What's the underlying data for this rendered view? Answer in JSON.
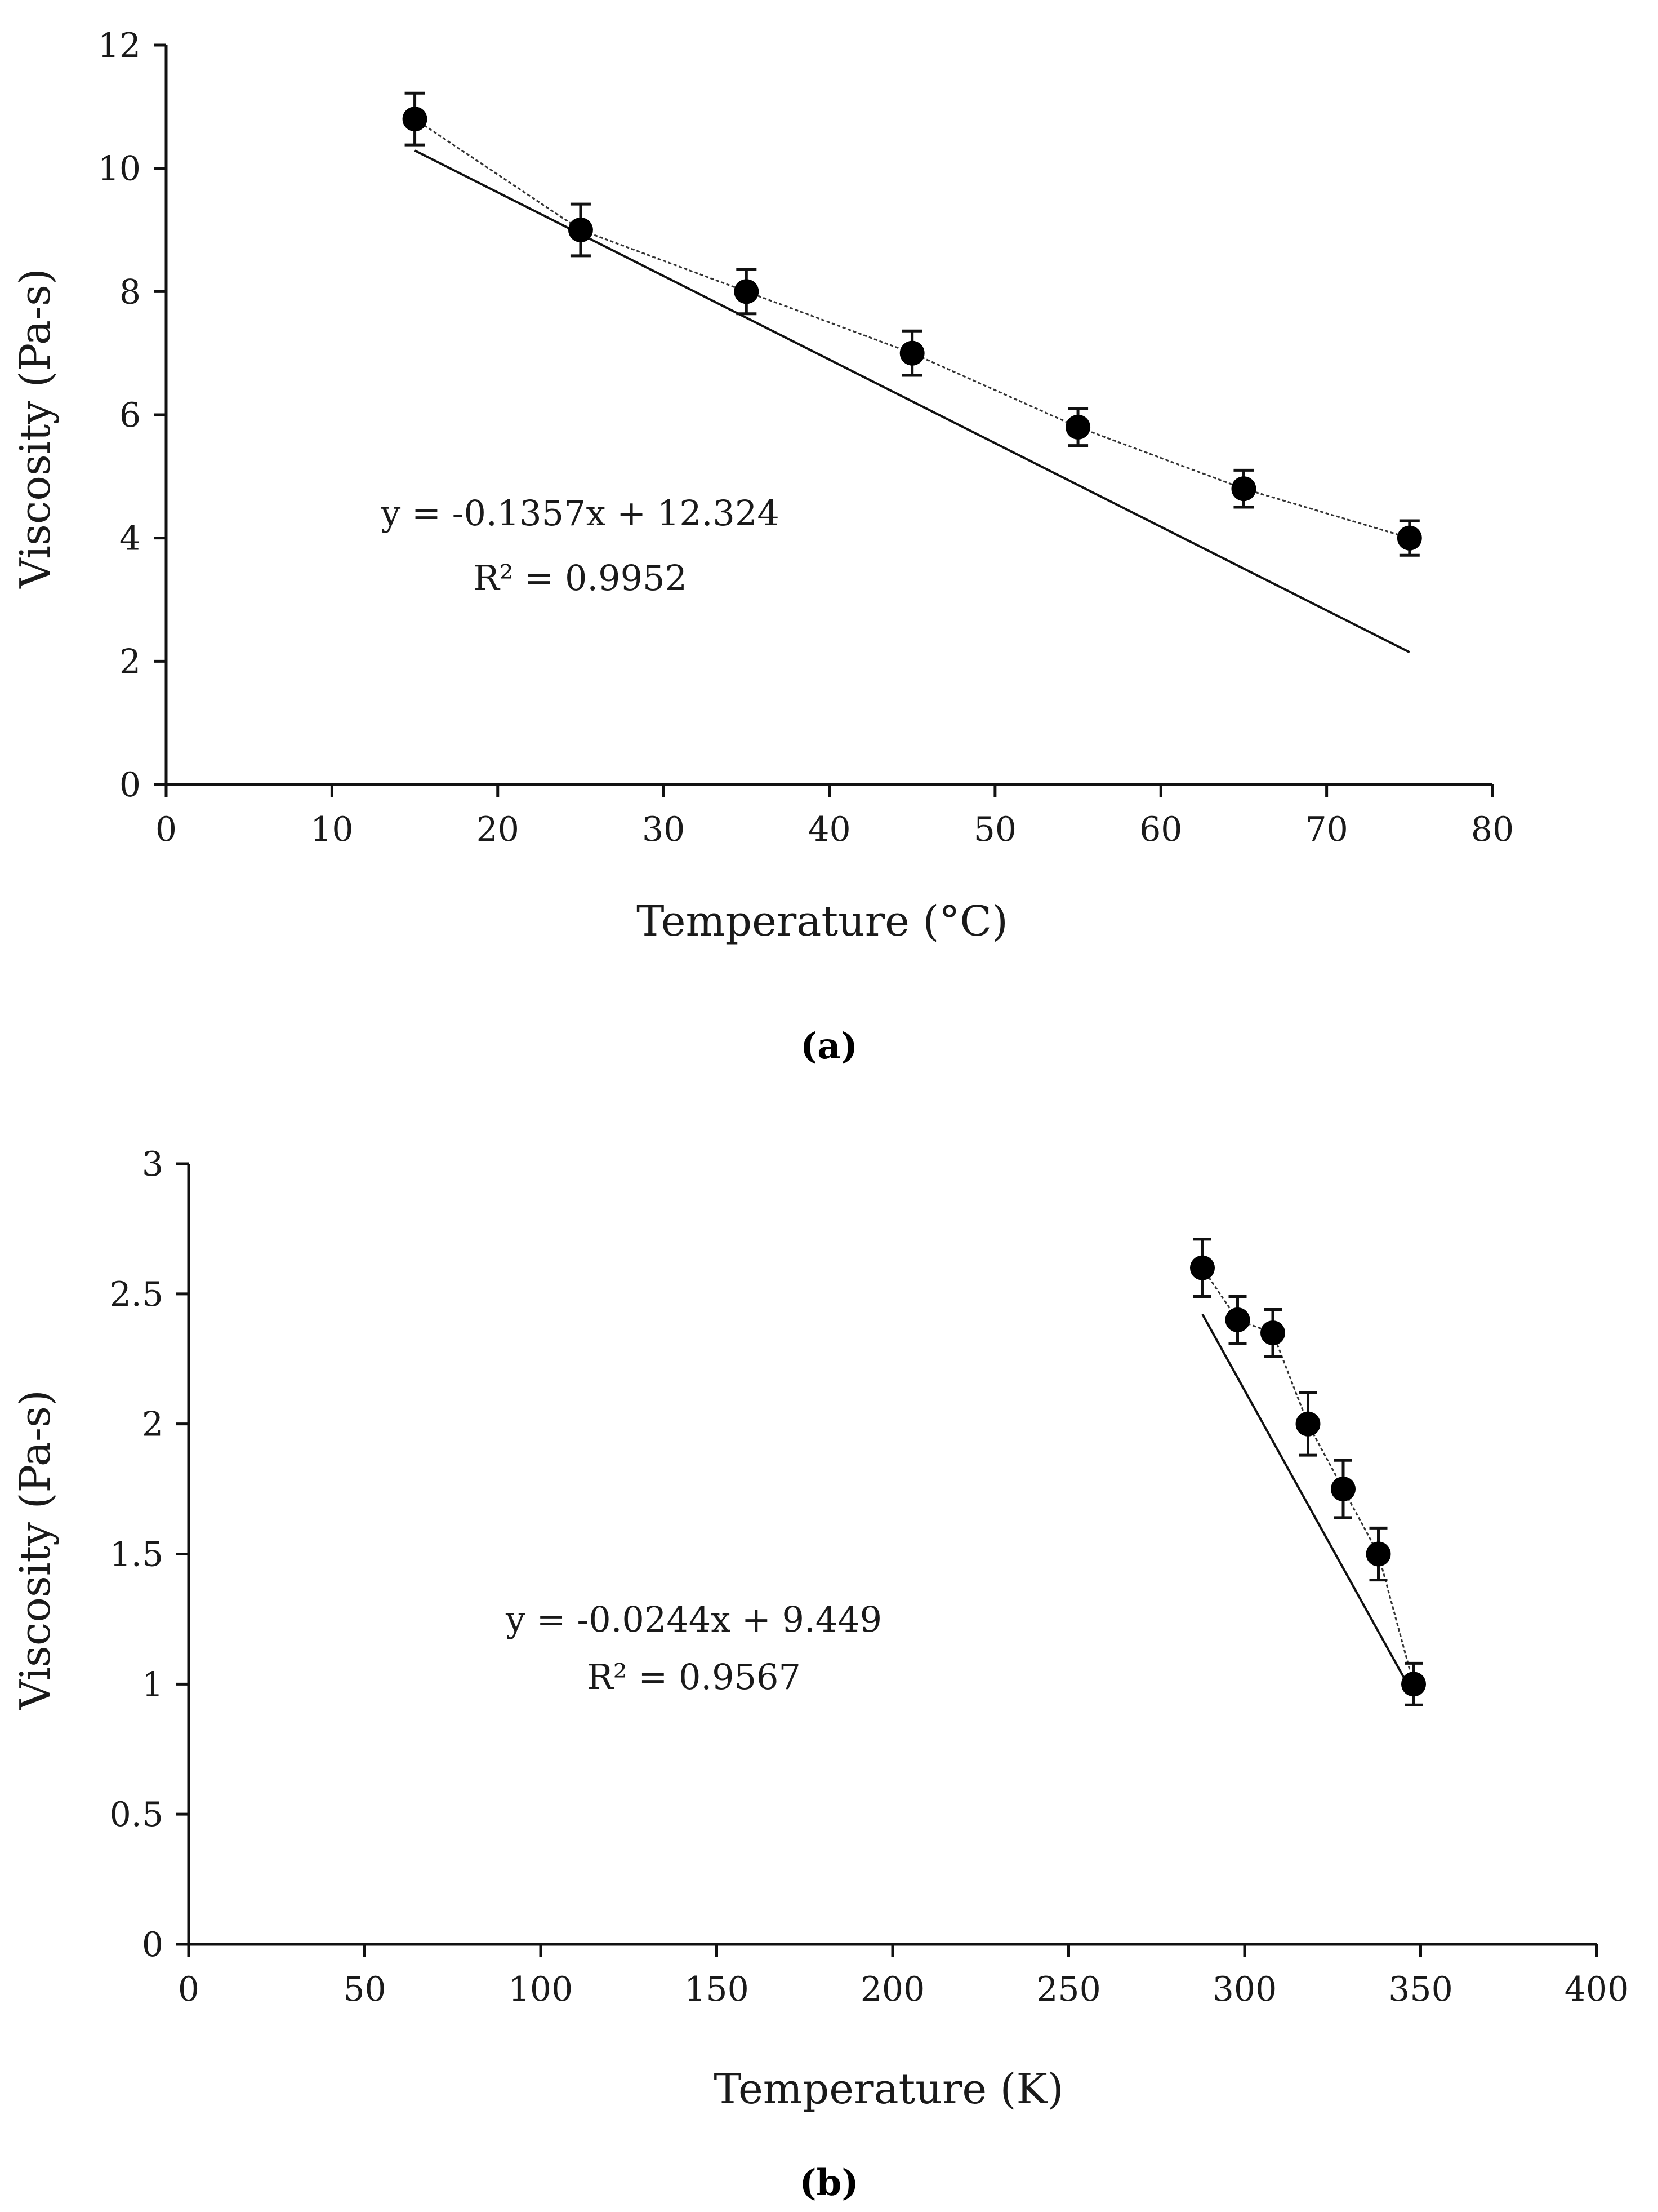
{
  "chart_data": [
    {
      "type": "scatter",
      "panel_label": "(a)",
      "xlabel": "Temperature (°C)",
      "ylabel": "Viscosity (Pa-s)",
      "xlim": [
        0,
        80
      ],
      "ylim": [
        0,
        12
      ],
      "xticks": [
        0,
        10,
        20,
        30,
        40,
        50,
        60,
        70,
        80
      ],
      "yticks": [
        0,
        2,
        4,
        6,
        8,
        10,
        12
      ],
      "x": [
        15,
        25,
        35,
        45,
        55,
        65,
        75
      ],
      "y": [
        10.8,
        9.0,
        8.0,
        7.0,
        5.8,
        4.8,
        4.0
      ],
      "error": [
        0.42,
        0.42,
        0.36,
        0.36,
        0.3,
        0.3,
        0.28
      ],
      "trendline": {
        "slope": -0.1357,
        "intercept": 12.324,
        "x_range": [
          15,
          75
        ]
      },
      "equation": "y = -0.1357x + 12.324",
      "r2": "R² = 0.9952",
      "grid": false
    },
    {
      "type": "scatter",
      "panel_label": "(b)",
      "xlabel": "Temperature (K)",
      "ylabel": "Viscosity (Pa-s)",
      "xlim": [
        0,
        400
      ],
      "ylim": [
        0,
        3
      ],
      "xticks": [
        0,
        50,
        100,
        150,
        200,
        250,
        300,
        350,
        400
      ],
      "yticks": [
        0,
        0.5,
        1,
        1.5,
        2,
        2.5,
        3
      ],
      "ytick_labels": [
        "0",
        "0.5",
        "1",
        "1.5",
        "2",
        "2.5",
        "3"
      ],
      "x": [
        288,
        298,
        308,
        318,
        328,
        338,
        348
      ],
      "y": [
        2.6,
        2.4,
        2.35,
        2.0,
        1.75,
        1.5,
        1.0
      ],
      "error": [
        0.11,
        0.09,
        0.09,
        0.12,
        0.11,
        0.1,
        0.08
      ],
      "trendline": {
        "slope": -0.0244,
        "intercept": 9.449,
        "x_range": [
          288,
          348
        ]
      },
      "equation": "y = -0.0244x + 9.449",
      "r2": "R² = 0.9567",
      "grid": false
    }
  ]
}
